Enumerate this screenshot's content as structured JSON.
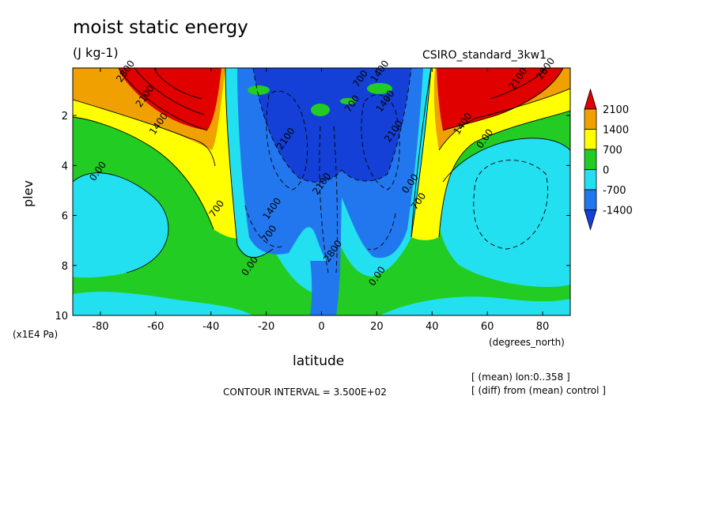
{
  "chart_data": {
    "type": "heatmap",
    "title": "moist static energy",
    "units": "(J kg-1)",
    "model_label": "CSIRO_standard_3kw1",
    "xlabel": "latitude",
    "x_units": "(degrees_north)",
    "ylabel": "plev",
    "y_units": "(x1E4 Pa)",
    "x_ticks": [
      "-80",
      "-60",
      "-40",
      "-20",
      "0",
      "20",
      "40",
      "60",
      "80"
    ],
    "x_tick_values": [
      -80,
      -60,
      -40,
      -20,
      0,
      20,
      40,
      60,
      80
    ],
    "y_ticks": [
      "2",
      "4",
      "6",
      "8",
      "10"
    ],
    "y_tick_values": [
      2,
      4,
      6,
      8,
      10
    ],
    "xlim": [
      -90,
      90
    ],
    "ylim": [
      10,
      0.1
    ],
    "contour_interval_text": "CONTOUR INTERVAL = 3.500E+02",
    "notes": [
      "[ (mean) lon:0..358 ]",
      "[ (diff) from (mean) control ]"
    ],
    "colorbar": {
      "labels": [
        "2100",
        "1400",
        "700",
        "0",
        "-700",
        "-1400"
      ],
      "colors": [
        "#e00000",
        "#f0a000",
        "#ffff00",
        "#22cc22",
        "#22e0f0",
        "#2277ee",
        "#1440d8"
      ]
    },
    "contour_labels": [
      {
        "text": "1400",
        "lat": -58,
        "p": 2.4
      },
      {
        "text": "2100",
        "lat": -63,
        "p": 1.3
      },
      {
        "text": "2800",
        "lat": -70,
        "p": 0.3
      },
      {
        "text": "0.00",
        "lat": -80,
        "p": 4.3
      },
      {
        "text": "700",
        "lat": -37,
        "p": 5.8
      },
      {
        "text": "0.00",
        "lat": -25,
        "p": 8.1
      },
      {
        "text": "700",
        "lat": -18,
        "p": 6.8
      },
      {
        "text": "1400",
        "lat": -17,
        "p": 5.8
      },
      {
        "text": "2100",
        "lat": -12,
        "p": 3.0
      },
      {
        "text": "2100",
        "lat": 1,
        "p": 4.8
      },
      {
        "text": "2800",
        "lat": 5,
        "p": 7.5
      },
      {
        "text": "700",
        "lat": 12,
        "p": 1.6
      },
      {
        "text": "1400",
        "lat": 24,
        "p": 1.5
      },
      {
        "text": "2100",
        "lat": 27,
        "p": 2.7
      },
      {
        "text": "700",
        "lat": 15,
        "p": 0.6
      },
      {
        "text": "1400",
        "lat": 22,
        "p": 0.3
      },
      {
        "text": "0.00",
        "lat": 33,
        "p": 4.8
      },
      {
        "text": "700",
        "lat": 36,
        "p": 5.5
      },
      {
        "text": "0.00",
        "lat": 21,
        "p": 8.5
      },
      {
        "text": "1400",
        "lat": 52,
        "p": 2.4
      },
      {
        "text": "2100",
        "lat": 72,
        "p": 0.6
      },
      {
        "text": "2800",
        "lat": 82,
        "p": 0.2
      },
      {
        "text": "0.00",
        "lat": 60,
        "p": 3.0
      }
    ]
  }
}
